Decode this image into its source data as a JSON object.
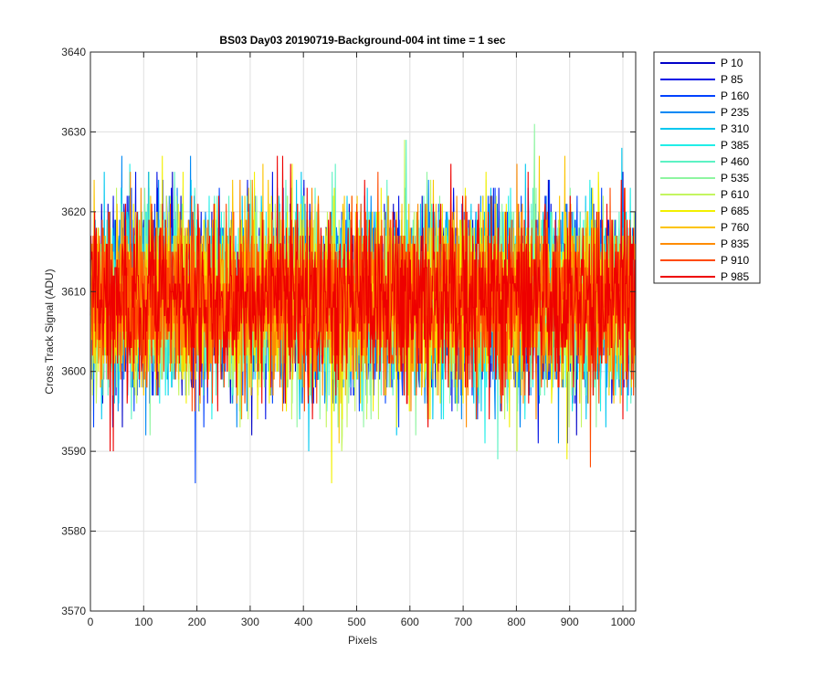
{
  "chart_data": {
    "type": "line",
    "title": "BS03 Day03 20190719-Background-004 int time = 1 sec",
    "xlabel": "Pixels",
    "ylabel": "Cross Track Signal (ADU)",
    "xlim": [
      0,
      1024
    ],
    "ylim": [
      3570,
      3640
    ],
    "xticks": [
      0,
      100,
      200,
      300,
      400,
      500,
      600,
      700,
      800,
      900,
      1000
    ],
    "yticks": [
      3570,
      3580,
      3590,
      3600,
      3610,
      3620,
      3630,
      3640
    ],
    "grid": true,
    "legend_position": "outside-top-right",
    "noise": {
      "mean": 3609,
      "sd": 5.5,
      "min": 3578,
      "max": 3637,
      "n_points": 1024
    },
    "series": [
      {
        "name": "P 10",
        "color": "#0000c8"
      },
      {
        "name": "P 85",
        "color": "#0010e6"
      },
      {
        "name": "P 160",
        "color": "#0042ff"
      },
      {
        "name": "P 235",
        "color": "#0088f4"
      },
      {
        "name": "P 310",
        "color": "#00c8f0"
      },
      {
        "name": "P 385",
        "color": "#21eee8"
      },
      {
        "name": "P 460",
        "color": "#5cf2c4"
      },
      {
        "name": "P 535",
        "color": "#8ef5a0"
      },
      {
        "name": "P 610",
        "color": "#c4f560"
      },
      {
        "name": "P 685",
        "color": "#f2f000"
      },
      {
        "name": "P 760",
        "color": "#fcc400"
      },
      {
        "name": "P 835",
        "color": "#ff8c00"
      },
      {
        "name": "P 910",
        "color": "#ff4a00"
      },
      {
        "name": "P 985",
        "color": "#ee0000"
      }
    ]
  }
}
